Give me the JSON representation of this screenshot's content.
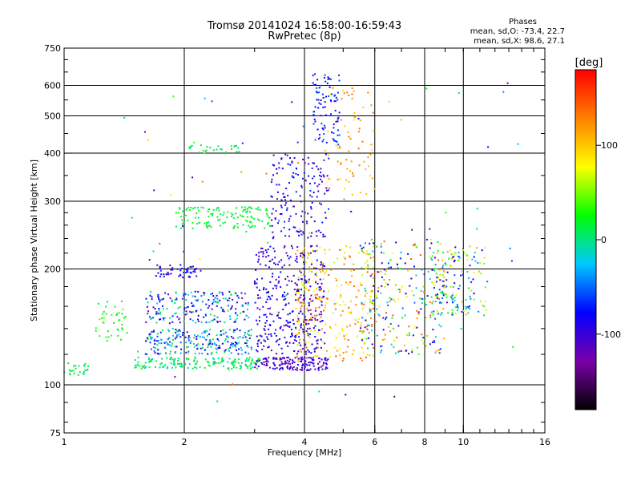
{
  "title_line1": "Tromsø 20141024 16:58:00-16:59:43",
  "title_line2": "RwPretec (8p)",
  "phases": {
    "header": "Phases",
    "line_o": "mean, sd,O: -73.4, 22.7",
    "line_x": "mean, sd,X:  98.6, 27.1"
  },
  "chart_data": {
    "type": "scatter",
    "title": "Tromsø 20141024 16:58:00-16:59:43",
    "subtitle": "RwPretec (8p)",
    "xlabel": "Frequency [MHz]",
    "ylabel": "Stationary phase Virtual Height [km]",
    "xscale": "log",
    "yscale": "log",
    "xlim": [
      1,
      16
    ],
    "ylim": [
      75,
      750
    ],
    "xticks": [
      1,
      2,
      4,
      6,
      8,
      10,
      16
    ],
    "xtick_labels": [
      "1",
      "2",
      "4",
      "6",
      "8",
      "10",
      "16"
    ],
    "yticks": [
      75,
      100,
      200,
      300,
      400,
      500,
      600,
      750
    ],
    "ytick_labels": [
      "75",
      "100",
      "200",
      "300",
      "400",
      "500",
      "600",
      "750"
    ],
    "grid_x": [
      2,
      4,
      6,
      8,
      10
    ],
    "grid_y": [
      100,
      200,
      300,
      400,
      500,
      600
    ],
    "colorbar": {
      "label": "[deg]",
      "range": [
        -180,
        180
      ],
      "ticks": [
        100,
        0,
        -100
      ],
      "tick_labels": [
        "100",
        "0",
        "-100"
      ],
      "colors": [
        "#000000",
        "#7a00a8",
        "#0000ff",
        "#00c8ff",
        "#00ff00",
        "#ffff00",
        "#ff8000",
        "#ff0000"
      ]
    },
    "phase_stats": {
      "O": {
        "mean": -73.4,
        "sd": 22.7
      },
      "X": {
        "mean": 98.6,
        "sd": 27.1
      }
    },
    "clusters": [
      {
        "f": [
          1.0,
          1.15
        ],
        "h": [
          105,
          115
        ],
        "phase": [
          0,
          20
        ],
        "n": 25
      },
      {
        "f": [
          1.2,
          1.45
        ],
        "h": [
          130,
          165
        ],
        "phase": [
          10,
          40
        ],
        "n": 40
      },
      {
        "f": [
          1.5,
          3.1
        ],
        "h": [
          110,
          118
        ],
        "phase": [
          -20,
          30
        ],
        "n": 160
      },
      {
        "f": [
          1.6,
          3.0
        ],
        "h": [
          120,
          140
        ],
        "phase": [
          -100,
          20
        ],
        "n": 220
      },
      {
        "f": [
          1.6,
          2.9
        ],
        "h": [
          145,
          175
        ],
        "phase": [
          -130,
          20
        ],
        "n": 200
      },
      {
        "f": [
          1.7,
          2.2
        ],
        "h": [
          190,
          205
        ],
        "phase": [
          -110,
          -60
        ],
        "n": 50
      },
      {
        "f": [
          1.9,
          3.3
        ],
        "h": [
          255,
          290
        ],
        "phase": [
          0,
          30
        ],
        "n": 130
      },
      {
        "f": [
          2.0,
          2.8
        ],
        "h": [
          400,
          420
        ],
        "phase": [
          0,
          20
        ],
        "n": 25
      },
      {
        "f": [
          3.0,
          4.6
        ],
        "h": [
          109,
          118
        ],
        "phase": [
          -130,
          -80
        ],
        "n": 150
      },
      {
        "f": [
          3.0,
          4.5
        ],
        "h": [
          120,
          230
        ],
        "phase": [
          -120,
          -70
        ],
        "n": 350
      },
      {
        "f": [
          3.3,
          4.6
        ],
        "h": [
          240,
          400
        ],
        "phase": [
          -120,
          -60
        ],
        "n": 160
      },
      {
        "f": [
          4.2,
          4.9
        ],
        "h": [
          420,
          650
        ],
        "phase": [
          -100,
          -50
        ],
        "n": 90
      },
      {
        "f": [
          3.8,
          6.0
        ],
        "h": [
          115,
          230
        ],
        "phase": [
          60,
          150
        ],
        "n": 260
      },
      {
        "f": [
          4.5,
          6.0
        ],
        "h": [
          300,
          600
        ],
        "phase": [
          90,
          140
        ],
        "n": 70
      },
      {
        "f": [
          5.5,
          9.0
        ],
        "h": [
          120,
          240
        ],
        "phase": [
          -120,
          150
        ],
        "n": 260
      },
      {
        "f": [
          8.3,
          11.5
        ],
        "h": [
          150,
          230
        ],
        "phase": [
          -110,
          120
        ],
        "n": 150
      },
      {
        "f": [
          1.4,
          14.0
        ],
        "h": [
          90,
          650
        ],
        "phase": [
          -150,
          150
        ],
        "n": 80
      }
    ]
  }
}
